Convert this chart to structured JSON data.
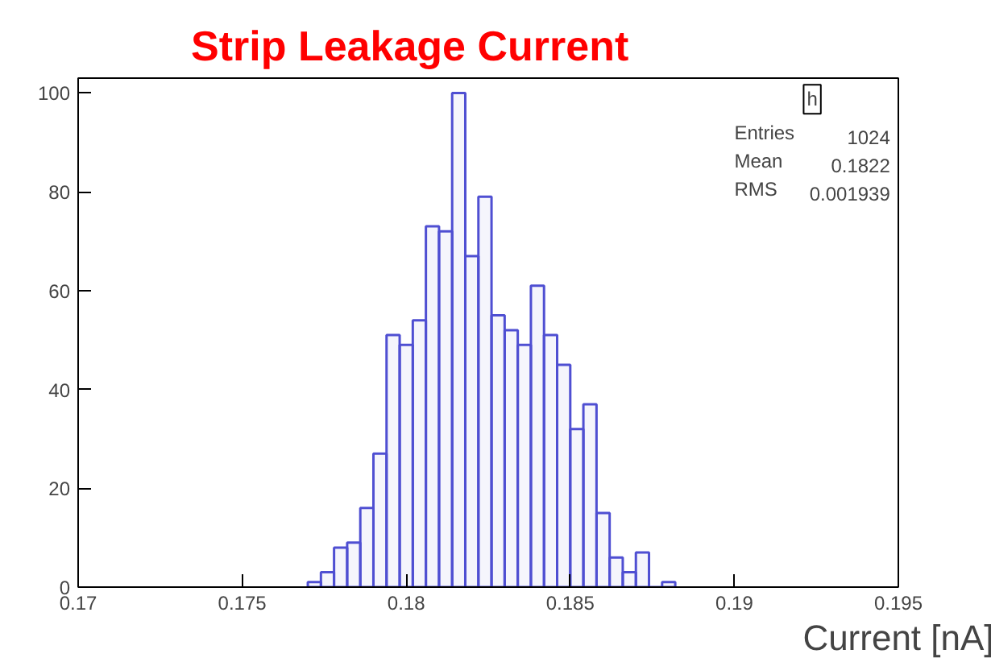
{
  "chart_data": {
    "type": "histogram",
    "title": "Strip Leakage Current",
    "xlabel": "Current [nA]",
    "bins": [
      0.177,
      0.1774,
      0.1778,
      0.1782,
      0.1786,
      0.179,
      0.1794,
      0.1798,
      0.1802,
      0.1806,
      0.181,
      0.1814,
      0.1818,
      0.1822,
      0.1826,
      0.183,
      0.1834,
      0.1838,
      0.1842,
      0.1846,
      0.185,
      0.1854,
      0.1858,
      0.1862,
      0.1866,
      0.187,
      0.1874,
      0.1878,
      0.1882
    ],
    "values": [
      1,
      3,
      8,
      9,
      16,
      27,
      51,
      49,
      54,
      73,
      72,
      100,
      67,
      79,
      55,
      52,
      49,
      61,
      51,
      45,
      32,
      37,
      15,
      6,
      3,
      7,
      0,
      1
    ],
    "color": "#4f4fd2",
    "xlim": [
      0.17,
      0.195
    ],
    "xticks": [
      0.17,
      0.175,
      0.18,
      0.185,
      0.19,
      0.195
    ],
    "ylim": [
      0,
      103
    ],
    "yticks": [
      0,
      20,
      40,
      60,
      80,
      100
    ],
    "grid": false,
    "annotations": [
      "h",
      "Entries",
      "1024",
      "Mean",
      "0.1822",
      "RMS",
      "0.001939"
    ]
  }
}
